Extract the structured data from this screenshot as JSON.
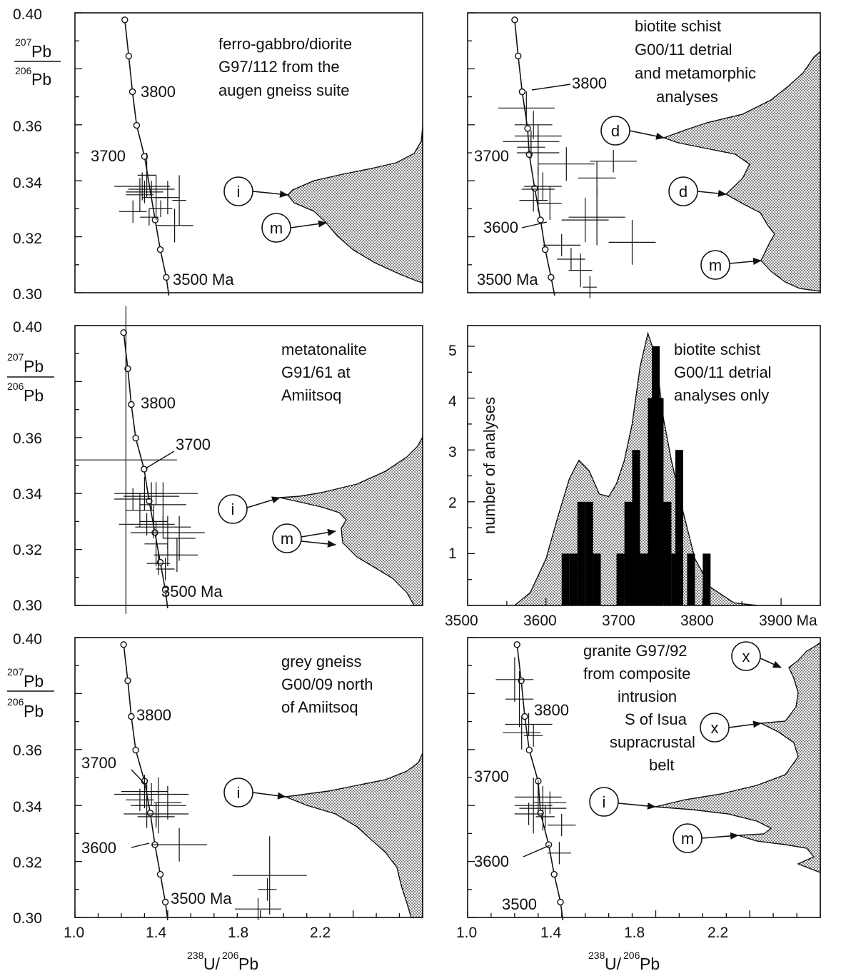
{
  "y_axis_label": {
    "sup1": "207",
    "base1": "Pb",
    "sup2": "206",
    "base2": "Pb"
  },
  "x_axis_label": {
    "sup1": "238",
    "base1": "U/",
    "sup2": "206",
    "base2": "Pb"
  },
  "chart_data": [
    {
      "type": "scatter",
      "panel": "top-left",
      "title_lines": [
        "ferro-gabbro/diorite",
        "G97/112 from the",
        "augen gneiss suite"
      ],
      "xlim": [
        1.0,
        2.5
      ],
      "ylim": [
        0.3,
        0.4
      ],
      "yticks": [
        "0.40",
        "0.36",
        "0.34",
        "0.32",
        "0.30"
      ],
      "xticks": [],
      "concordia_labels": [
        "3800",
        "3700",
        "3500 Ma"
      ],
      "peak_labels": [
        "i",
        "m"
      ],
      "concordia": [
        [
          1.215,
          0.3975
        ],
        [
          1.232,
          0.3846
        ],
        [
          1.248,
          0.3718
        ],
        [
          1.266,
          0.3598
        ],
        [
          1.3,
          0.3487
        ],
        [
          1.346,
          0.326
        ],
        [
          1.368,
          0.3154
        ],
        [
          1.394,
          0.3055
        ],
        [
          1.405,
          0.299
        ]
      ],
      "analyses": [
        [
          1.3,
          0.336,
          0.08,
          0.004
        ],
        [
          1.28,
          0.335,
          0.06,
          0.006
        ],
        [
          1.33,
          0.337,
          0.1,
          0.003
        ],
        [
          1.29,
          0.338,
          0.12,
          0.005
        ],
        [
          1.35,
          0.334,
          0.06,
          0.008
        ],
        [
          1.37,
          0.33,
          0.05,
          0.003
        ],
        [
          1.43,
          0.324,
          0.08,
          0.006
        ],
        [
          1.25,
          0.329,
          0.06,
          0.004
        ],
        [
          1.32,
          0.327,
          0.04,
          0.003
        ],
        [
          1.31,
          0.342,
          0.04,
          0.008
        ],
        [
          1.4,
          0.334,
          0.05,
          0.006
        ],
        [
          1.45,
          0.333,
          0.03,
          0.009
        ]
      ]
    },
    {
      "type": "scatter",
      "panel": "top-right",
      "title_lines": [
        "biotite schist",
        "G00/11 detrial",
        "and metamorphic",
        "analyses"
      ],
      "xlim": [
        1.0,
        2.5
      ],
      "ylim": [
        0.3,
        0.4
      ],
      "yticks": [],
      "xticks": [],
      "concordia_labels": [
        "3800",
        "3700",
        "3600",
        "3500 Ma"
      ],
      "peak_labels": [
        "d",
        "d",
        "m"
      ],
      "concordia": [
        [
          1.2,
          0.3975
        ],
        [
          1.215,
          0.3846
        ],
        [
          1.232,
          0.3718
        ],
        [
          1.255,
          0.3587
        ],
        [
          1.262,
          0.3494
        ],
        [
          1.285,
          0.3373
        ],
        [
          1.31,
          0.326
        ],
        [
          1.33,
          0.3154
        ],
        [
          1.355,
          0.3055
        ],
        [
          1.37,
          0.299
        ]
      ],
      "analyses": [
        [
          1.25,
          0.366,
          0.12,
          0.006
        ],
        [
          1.28,
          0.36,
          0.08,
          0.005
        ],
        [
          1.3,
          0.356,
          0.1,
          0.004
        ],
        [
          1.27,
          0.352,
          0.06,
          0.004
        ],
        [
          1.3,
          0.35,
          0.09,
          0.008
        ],
        [
          1.27,
          0.354,
          0.12,
          0.004
        ],
        [
          1.62,
          0.347,
          0.1,
          0.004
        ],
        [
          1.42,
          0.346,
          0.12,
          0.006
        ],
        [
          1.55,
          0.341,
          0.08,
          0.006
        ],
        [
          1.32,
          0.338,
          0.08,
          0.005
        ],
        [
          1.3,
          0.337,
          0.07,
          0.008
        ],
        [
          1.28,
          0.333,
          0.06,
          0.004
        ],
        [
          1.35,
          0.332,
          0.05,
          0.006
        ],
        [
          1.55,
          0.327,
          0.12,
          0.01
        ],
        [
          1.5,
          0.326,
          0.1,
          0.008
        ],
        [
          1.7,
          0.318,
          0.1,
          0.008
        ],
        [
          1.4,
          0.317,
          0.08,
          0.004
        ],
        [
          1.44,
          0.312,
          0.06,
          0.004
        ],
        [
          1.48,
          0.308,
          0.05,
          0.006
        ],
        [
          1.52,
          0.302,
          0.03,
          0.004
        ]
      ]
    },
    {
      "type": "scatter",
      "panel": "middle-left",
      "title_lines": [
        "metatonalite",
        "G91/61 at",
        "Amiitsoq"
      ],
      "xlim": [
        1.0,
        2.5
      ],
      "ylim": [
        0.3,
        0.4
      ],
      "yticks": [
        "0.40",
        "0.36",
        "0.34",
        "0.32",
        "0.30"
      ],
      "xticks": [],
      "concordia_labels": [
        "3800",
        "3700",
        "3500 Ma"
      ],
      "peak_labels": [
        "i",
        "m"
      ],
      "concordia": [
        [
          1.21,
          0.3975
        ],
        [
          1.228,
          0.3846
        ],
        [
          1.243,
          0.3718
        ],
        [
          1.262,
          0.3598
        ],
        [
          1.298,
          0.3487
        ],
        [
          1.32,
          0.3373
        ],
        [
          1.345,
          0.326
        ],
        [
          1.368,
          0.3154
        ],
        [
          1.39,
          0.3055
        ],
        [
          1.4,
          0.299
        ]
      ],
      "analyses": [
        [
          1.22,
          0.352,
          0.22,
          0.055
        ],
        [
          1.3,
          0.34,
          0.08,
          0.006
        ],
        [
          1.33,
          0.339,
          0.12,
          0.005
        ],
        [
          1.35,
          0.34,
          0.18,
          0.004
        ],
        [
          1.38,
          0.336,
          0.1,
          0.008
        ],
        [
          1.28,
          0.334,
          0.06,
          0.006
        ],
        [
          1.25,
          0.338,
          0.08,
          0.004
        ],
        [
          1.34,
          0.33,
          0.06,
          0.006
        ],
        [
          1.31,
          0.329,
          0.12,
          0.004
        ],
        [
          1.38,
          0.328,
          0.12,
          0.004
        ],
        [
          1.4,
          0.326,
          0.16,
          0.006
        ],
        [
          1.45,
          0.324,
          0.07,
          0.008
        ],
        [
          1.35,
          0.322,
          0.05,
          0.008
        ],
        [
          1.4,
          0.318,
          0.06,
          0.004
        ],
        [
          1.36,
          0.315,
          0.05,
          0.004
        ],
        [
          1.44,
          0.318,
          0.09,
          0.006
        ],
        [
          1.39,
          0.313,
          0.04,
          0.004
        ]
      ]
    },
    {
      "type": "histogram",
      "panel": "middle-right",
      "title_lines": [
        "biotite schist",
        "G00/11 detrial",
        "analyses only"
      ],
      "ylabel": "number of analyses",
      "xlim": [
        3500,
        3950
      ],
      "ylim": [
        0,
        5.4
      ],
      "xticks": [
        "3500",
        "3600",
        "3700",
        "3800",
        "3900 Ma"
      ],
      "yticks": [
        "1",
        "2",
        "3",
        "4",
        "5"
      ],
      "bars": [
        [
          3620,
          1
        ],
        [
          3630,
          1
        ],
        [
          3640,
          2
        ],
        [
          3650,
          2
        ],
        [
          3660,
          1
        ],
        [
          3690,
          1
        ],
        [
          3700,
          2
        ],
        [
          3710,
          3
        ],
        [
          3720,
          1
        ],
        [
          3730,
          4
        ],
        [
          3735,
          5
        ],
        [
          3740,
          4
        ],
        [
          3750,
          2
        ],
        [
          3760,
          1
        ],
        [
          3765,
          3
        ],
        [
          3780,
          1
        ],
        [
          3800,
          1
        ]
      ],
      "bar_width": 10,
      "density": [
        [
          3560,
          0.0
        ],
        [
          3580,
          0.25
        ],
        [
          3600,
          0.9
        ],
        [
          3615,
          1.7
        ],
        [
          3630,
          2.45
        ],
        [
          3642,
          2.8
        ],
        [
          3655,
          2.6
        ],
        [
          3668,
          2.15
        ],
        [
          3680,
          2.1
        ],
        [
          3690,
          2.35
        ],
        [
          3700,
          2.8
        ],
        [
          3710,
          3.5
        ],
        [
          3720,
          4.6
        ],
        [
          3730,
          5.25
        ],
        [
          3740,
          4.8
        ],
        [
          3750,
          3.6
        ],
        [
          3760,
          2.8
        ],
        [
          3775,
          1.8
        ],
        [
          3790,
          0.9
        ],
        [
          3810,
          0.35
        ],
        [
          3840,
          0.05
        ],
        [
          3870,
          0.0
        ]
      ]
    },
    {
      "type": "scatter",
      "panel": "bottom-left",
      "title_lines": [
        "grey gneiss",
        "G00/09 north",
        "of Amiitsoq"
      ],
      "xlim": [
        1.0,
        2.5
      ],
      "ylim": [
        0.3,
        0.4
      ],
      "yticks": [
        "0.40",
        "0.36",
        "0.34",
        "0.32",
        "0.30"
      ],
      "xticks": [
        "1.0",
        "1.4",
        "1.8",
        "2.2"
      ],
      "concordia_labels": [
        "3800",
        "3700",
        "3600",
        "3500 Ma"
      ],
      "peak_labels": [
        "i"
      ],
      "concordia": [
        [
          1.21,
          0.3975
        ],
        [
          1.228,
          0.3846
        ],
        [
          1.243,
          0.3718
        ],
        [
          1.262,
          0.3598
        ],
        [
          1.3,
          0.3487
        ],
        [
          1.325,
          0.3373
        ],
        [
          1.345,
          0.326
        ],
        [
          1.368,
          0.3154
        ],
        [
          1.39,
          0.3055
        ],
        [
          1.4,
          0.299
        ]
      ],
      "analyses": [
        [
          1.3,
          0.345,
          0.1,
          0.006
        ],
        [
          1.33,
          0.344,
          0.16,
          0.004
        ],
        [
          1.36,
          0.34,
          0.12,
          0.01
        ],
        [
          1.28,
          0.342,
          0.06,
          0.004
        ],
        [
          1.35,
          0.337,
          0.14,
          0.004
        ],
        [
          1.31,
          0.34,
          0.05,
          0.008
        ],
        [
          1.4,
          0.341,
          0.06,
          0.006
        ],
        [
          1.45,
          0.326,
          0.12,
          0.006
        ],
        [
          1.35,
          0.336,
          0.08,
          0.004
        ],
        [
          1.84,
          0.315,
          0.16,
          0.014
        ],
        [
          1.79,
          0.303,
          0.1,
          0.004
        ],
        [
          1.83,
          0.31,
          0.04,
          0.004
        ]
      ]
    },
    {
      "type": "scatter",
      "panel": "bottom-right",
      "title_lines": [
        "granite G97/92",
        "from composite",
        "intrusion",
        "S of Isua",
        "supracrustal",
        "belt"
      ],
      "xlim": [
        1.0,
        2.5
      ],
      "ylim": [
        0.3,
        0.4
      ],
      "yticks": [],
      "xticks": [
        "1.0",
        "1.4",
        "1.8",
        "2.2"
      ],
      "concordia_labels": [
        "3800",
        "3700",
        "3600",
        "3500"
      ],
      "peak_labels": [
        "x",
        "x",
        "i",
        "m"
      ],
      "concordia": [
        [
          1.21,
          0.3975
        ],
        [
          1.228,
          0.3846
        ],
        [
          1.243,
          0.3718
        ],
        [
          1.262,
          0.3598
        ],
        [
          1.3,
          0.3487
        ],
        [
          1.31,
          0.3373
        ],
        [
          1.345,
          0.326
        ],
        [
          1.368,
          0.3154
        ],
        [
          1.395,
          0.3055
        ],
        [
          1.405,
          0.299
        ]
      ],
      "analyses": [
        [
          1.2,
          0.385,
          0.08,
          0.008
        ],
        [
          1.22,
          0.378,
          0.06,
          0.01
        ],
        [
          1.26,
          0.369,
          0.1,
          0.004
        ],
        [
          1.23,
          0.366,
          0.08,
          0.006
        ],
        [
          1.28,
          0.365,
          0.04,
          0.004
        ],
        [
          1.3,
          0.343,
          0.1,
          0.006
        ],
        [
          1.28,
          0.34,
          0.08,
          0.01
        ],
        [
          1.32,
          0.339,
          0.1,
          0.008
        ],
        [
          1.26,
          0.337,
          0.06,
          0.004
        ],
        [
          1.35,
          0.341,
          0.07,
          0.004
        ],
        [
          1.33,
          0.336,
          0.04,
          0.004
        ],
        [
          1.39,
          0.323,
          0.05,
          0.004
        ],
        [
          1.4,
          0.333,
          0.06,
          0.004
        ]
      ]
    }
  ]
}
